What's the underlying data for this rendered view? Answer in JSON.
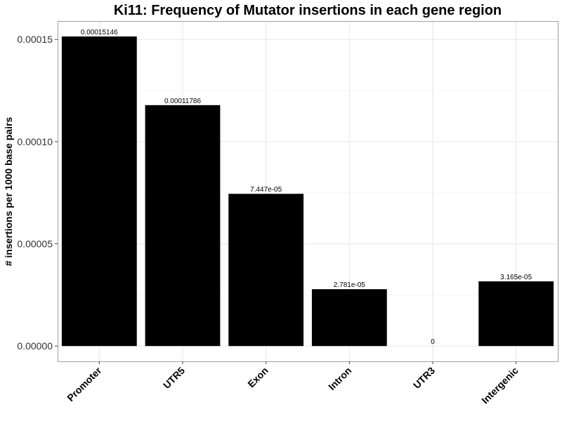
{
  "chart_data": {
    "type": "bar",
    "title": "Ki11: Frequency of Mutator insertions in each gene region",
    "xlabel": "",
    "ylabel": "# insertions per 1000 base pairs",
    "categories": [
      "Promoter",
      "UTR5",
      "Exon",
      "Intron",
      "UTR3",
      "Intergenic"
    ],
    "values": [
      0.00015146,
      0.00011786,
      7.447e-05,
      2.781e-05,
      0,
      3.165e-05
    ],
    "data_labels": [
      "0.00015146",
      "0.00011786",
      "7.447e-05",
      "2.781e-05",
      "0",
      "3.165e-05"
    ],
    "ylim": [
      -7.5e-06,
      0.000159
    ],
    "yticks": [
      0,
      5e-05,
      0.0001,
      0.00015
    ],
    "ytick_labels": [
      "0.00000",
      "0.00005",
      "0.00010",
      "0.00015"
    ],
    "grid": true,
    "bar_color": "#000000"
  }
}
